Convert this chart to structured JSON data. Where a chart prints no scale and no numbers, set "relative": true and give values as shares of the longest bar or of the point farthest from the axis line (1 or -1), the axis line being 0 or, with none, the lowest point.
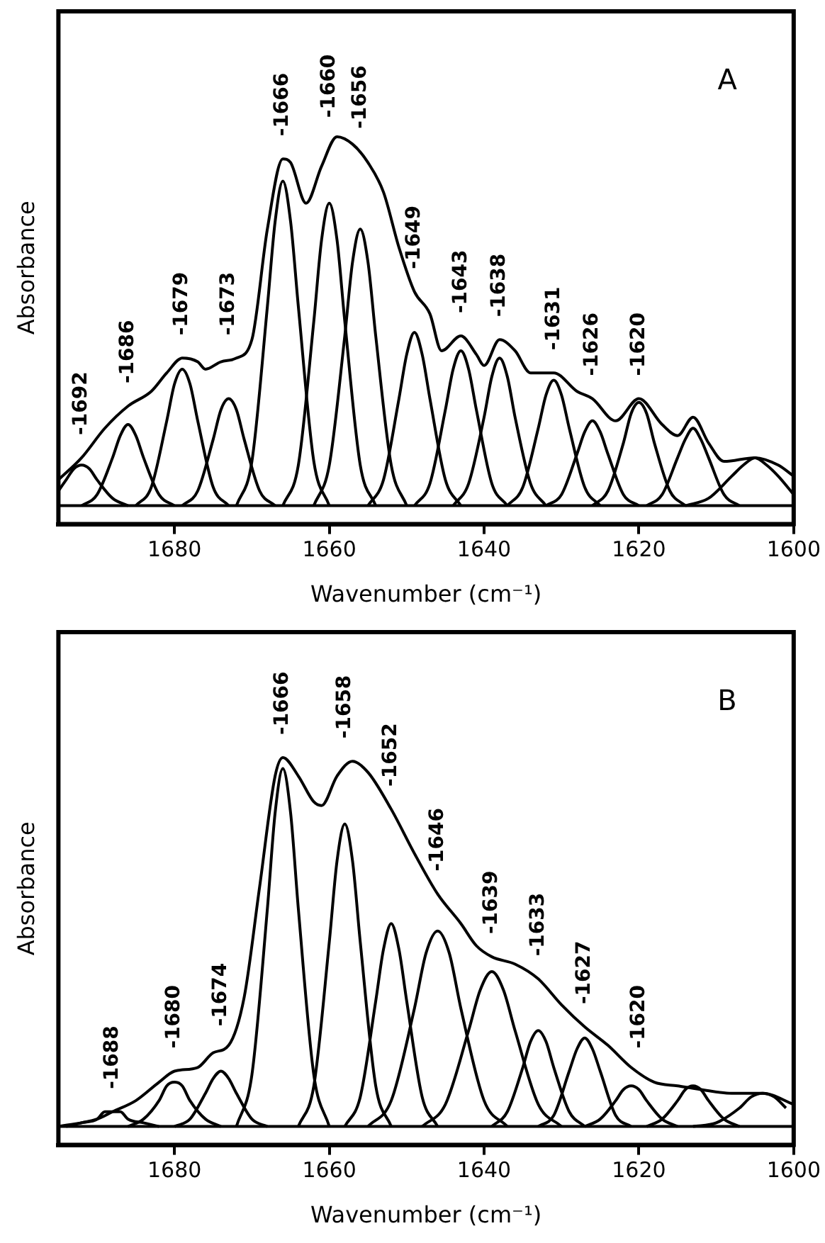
{
  "chart_data": [
    {
      "type": "line",
      "relative": true,
      "xlabel": "Wavenumber (cm⁻¹)",
      "ylabel": "Absorbance",
      "xlim": [
        1695,
        1600
      ],
      "xticks": [
        1680,
        1660,
        1640,
        1620,
        1600
      ],
      "marker": "none",
      "line_style": "solid",
      "series": [
        {
          "color": "#000000",
          "x": [
            1695,
            1692,
            1689,
            1686,
            1683,
            1681,
            1679,
            1677,
            1676,
            1674,
            1672,
            1670,
            1668,
            1666,
            1665,
            1663,
            1661,
            1659,
            1657,
            1655,
            1653,
            1651,
            1649,
            1647,
            1645.5,
            1643,
            1641,
            1640,
            1638,
            1636,
            1634,
            1631,
            1628,
            1626,
            1623,
            1620,
            1617,
            1615,
            1613,
            1611,
            1609,
            1605,
            1602,
            1600
          ],
          "values": [
            0.07,
            0.13,
            0.21,
            0.27,
            0.31,
            0.36,
            0.4,
            0.39,
            0.37,
            0.39,
            0.4,
            0.45,
            0.75,
            0.94,
            0.93,
            0.82,
            0.92,
            1.0,
            0.98,
            0.93,
            0.85,
            0.7,
            0.58,
            0.52,
            0.42,
            0.46,
            0.41,
            0.38,
            0.45,
            0.42,
            0.36,
            0.36,
            0.31,
            0.29,
            0.23,
            0.29,
            0.22,
            0.19,
            0.24,
            0.17,
            0.12,
            0.13,
            0.11,
            0.08
          ]
        },
        {
          "color": "#000000",
          "x": [
            1695,
            1694,
            1693,
            1692,
            1691,
            1690,
            1688,
            1686
          ],
          "values": [
            0.04,
            0.07,
            0.1,
            0.11,
            0.1,
            0.07,
            0.02,
            0
          ]
        },
        {
          "color": "#000000",
          "x": [
            1692,
            1690,
            1688,
            1687,
            1686,
            1685,
            1684,
            1682,
            1680
          ],
          "values": [
            0,
            0.03,
            0.13,
            0.19,
            0.22,
            0.19,
            0.13,
            0.03,
            0
          ]
        },
        {
          "color": "#000000",
          "x": [
            1685,
            1683,
            1681,
            1680,
            1679,
            1678,
            1677,
            1675,
            1673
          ],
          "values": [
            0,
            0.05,
            0.23,
            0.33,
            0.37,
            0.33,
            0.23,
            0.05,
            0
          ]
        },
        {
          "color": "#000000",
          "x": [
            1679,
            1677,
            1675,
            1674,
            1673,
            1672,
            1671,
            1669,
            1667
          ],
          "values": [
            0,
            0.04,
            0.18,
            0.26,
            0.29,
            0.26,
            0.18,
            0.04,
            0
          ]
        },
        {
          "color": "#000000",
          "x": [
            1672,
            1670,
            1668,
            1667,
            1666,
            1665,
            1664,
            1662,
            1660
          ],
          "values": [
            0,
            0.12,
            0.54,
            0.77,
            0.88,
            0.77,
            0.54,
            0.12,
            0
          ]
        },
        {
          "color": "#000000",
          "x": [
            1666,
            1664,
            1662,
            1661,
            1660,
            1659,
            1658,
            1656,
            1654
          ],
          "values": [
            0,
            0.11,
            0.5,
            0.72,
            0.82,
            0.72,
            0.5,
            0.11,
            0
          ]
        },
        {
          "color": "#000000",
          "x": [
            1662,
            1660,
            1658,
            1657,
            1656,
            1655,
            1654,
            1652,
            1650
          ],
          "values": [
            0,
            0.11,
            0.46,
            0.66,
            0.75,
            0.66,
            0.46,
            0.11,
            0
          ]
        },
        {
          "color": "#000000",
          "x": [
            1655,
            1653,
            1651,
            1650,
            1649,
            1648,
            1647,
            1645,
            1643
          ],
          "values": [
            0,
            0.07,
            0.29,
            0.41,
            0.47,
            0.41,
            0.29,
            0.07,
            0
          ]
        },
        {
          "color": "#000000",
          "x": [
            1649,
            1647,
            1645,
            1644,
            1643,
            1642,
            1641,
            1639,
            1637
          ],
          "values": [
            0,
            0.06,
            0.26,
            0.37,
            0.42,
            0.37,
            0.26,
            0.06,
            0
          ]
        },
        {
          "color": "#000000",
          "x": [
            1644,
            1642,
            1640,
            1639,
            1638,
            1637,
            1636,
            1634,
            1632
          ],
          "values": [
            0,
            0.06,
            0.24,
            0.35,
            0.4,
            0.35,
            0.24,
            0.06,
            0
          ]
        },
        {
          "color": "#000000",
          "x": [
            1637,
            1635,
            1633,
            1632,
            1631,
            1630,
            1629,
            1627,
            1625
          ],
          "values": [
            0,
            0.05,
            0.21,
            0.3,
            0.34,
            0.3,
            0.21,
            0.05,
            0
          ]
        },
        {
          "color": "#000000",
          "x": [
            1632,
            1630,
            1628,
            1627,
            1626,
            1625,
            1624,
            1622,
            1620
          ],
          "values": [
            0,
            0.03,
            0.14,
            0.2,
            0.23,
            0.2,
            0.14,
            0.03,
            0
          ]
        },
        {
          "color": "#000000",
          "x": [
            1626,
            1624,
            1622,
            1621,
            1620,
            1619,
            1618,
            1616,
            1614
          ],
          "values": [
            0,
            0.04,
            0.17,
            0.25,
            0.28,
            0.25,
            0.17,
            0.04,
            0
          ]
        },
        {
          "color": "#000000",
          "x": [
            1619,
            1617,
            1615,
            1614,
            1613,
            1612,
            1611,
            1609,
            1607
          ],
          "values": [
            0,
            0.03,
            0.13,
            0.18,
            0.21,
            0.18,
            0.13,
            0.03,
            0
          ]
        },
        {
          "color": "#000000",
          "x": [
            1614,
            1611,
            1608,
            1606.5,
            1605,
            1603.5,
            1602,
            1600
          ],
          "values": [
            0,
            0.02,
            0.08,
            0.11,
            0.13,
            0.11,
            0.08,
            0.03
          ]
        }
      ],
      "annotations": [
        "A",
        {
          "text": "-1692",
          "x": 1692,
          "y": 0.13
        },
        {
          "text": "-1686",
          "x": 1686,
          "y": 0.27
        },
        {
          "text": "-1679",
          "x": 1679,
          "y": 0.4
        },
        {
          "text": "-1673",
          "x": 1673,
          "y": 0.4
        },
        {
          "text": "-1666",
          "x": 1666,
          "y": 0.94
        },
        {
          "text": "-1660",
          "x": 1660,
          "y": 0.99
        },
        {
          "text": "-1656",
          "x": 1656,
          "y": 0.96
        },
        {
          "text": "-1649",
          "x": 1649,
          "y": 0.58
        },
        {
          "text": "-1643",
          "x": 1643,
          "y": 0.46
        },
        {
          "text": "-1638",
          "x": 1638,
          "y": 0.45
        },
        {
          "text": "-1631",
          "x": 1631,
          "y": 0.36
        },
        {
          "text": "-1626",
          "x": 1626,
          "y": 0.29
        },
        {
          "text": "-1620",
          "x": 1620,
          "y": 0.29
        }
      ]
    },
    {
      "type": "line",
      "relative": true,
      "xlabel": "Wavenumber (cm⁻¹)",
      "ylabel": "Absorbance",
      "xlim": [
        1695,
        1600
      ],
      "xticks": [
        1680,
        1660,
        1640,
        1620,
        1600
      ],
      "marker": "none",
      "line_style": "solid",
      "series": [
        {
          "color": "#000000",
          "x": [
            1695,
            1690,
            1688,
            1685,
            1682,
            1680,
            1677,
            1675,
            1673,
            1671,
            1669,
            1667,
            1666,
            1664,
            1662,
            1661,
            1659,
            1657,
            1655,
            1652,
            1649,
            1646,
            1643,
            1641,
            1639,
            1636,
            1633,
            1630,
            1627,
            1624,
            1621,
            1618,
            1615,
            1612,
            1608,
            1604,
            1600
          ],
          "values": [
            0,
            0.02,
            0.04,
            0.07,
            0.12,
            0.15,
            0.16,
            0.2,
            0.22,
            0.35,
            0.65,
            0.95,
            1.0,
            0.95,
            0.88,
            0.87,
            0.95,
            0.99,
            0.96,
            0.86,
            0.74,
            0.63,
            0.55,
            0.49,
            0.46,
            0.44,
            0.4,
            0.33,
            0.27,
            0.22,
            0.16,
            0.12,
            0.11,
            0.1,
            0.09,
            0.09,
            0.06
          ]
        },
        {
          "color": "#000000",
          "x": [
            1694,
            1692,
            1690,
            1689,
            1688,
            1687,
            1686,
            1684,
            1682
          ],
          "values": [
            0,
            0.01,
            0.02,
            0.04,
            0.04,
            0.04,
            0.02,
            0.01,
            0
          ]
        },
        {
          "color": "#000000",
          "x": [
            1686,
            1684,
            1682,
            1681,
            1680,
            1679,
            1678,
            1676,
            1674
          ],
          "values": [
            0,
            0.02,
            0.07,
            0.11,
            0.12,
            0.11,
            0.07,
            0.02,
            0
          ]
        },
        {
          "color": "#000000",
          "x": [
            1680,
            1678,
            1676,
            1675,
            1674,
            1673,
            1672,
            1670,
            1668
          ],
          "values": [
            0,
            0.02,
            0.09,
            0.13,
            0.15,
            0.13,
            0.09,
            0.02,
            0
          ]
        },
        {
          "color": "#000000",
          "x": [
            1672,
            1670,
            1668,
            1667,
            1666,
            1665,
            1664,
            1662,
            1660
          ],
          "values": [
            0,
            0.14,
            0.59,
            0.85,
            0.97,
            0.85,
            0.59,
            0.14,
            0
          ]
        },
        {
          "color": "#000000",
          "x": [
            1664,
            1662,
            1660,
            1659,
            1658,
            1657,
            1656,
            1654,
            1652
          ],
          "values": [
            0,
            0.11,
            0.5,
            0.72,
            0.82,
            0.72,
            0.5,
            0.11,
            0
          ]
        },
        {
          "color": "#000000",
          "x": [
            1658,
            1656,
            1654,
            1653,
            1652,
            1651,
            1650,
            1648,
            1646
          ],
          "values": [
            0,
            0.08,
            0.34,
            0.48,
            0.55,
            0.48,
            0.34,
            0.08,
            0
          ]
        },
        {
          "color": "#000000",
          "x": [
            1655,
            1652,
            1649,
            1647.5,
            1646,
            1644.5,
            1643,
            1640,
            1637
          ],
          "values": [
            0,
            0.07,
            0.32,
            0.47,
            0.53,
            0.47,
            0.32,
            0.07,
            0
          ]
        },
        {
          "color": "#000000",
          "x": [
            1648,
            1645,
            1642,
            1640.5,
            1639,
            1637.5,
            1636,
            1633,
            1630
          ],
          "values": [
            0,
            0.06,
            0.26,
            0.37,
            0.42,
            0.37,
            0.26,
            0.06,
            0
          ]
        },
        {
          "color": "#000000",
          "x": [
            1639,
            1637,
            1635,
            1634,
            1633,
            1632,
            1631,
            1629,
            1627
          ],
          "values": [
            0,
            0.04,
            0.16,
            0.23,
            0.26,
            0.23,
            0.16,
            0.04,
            0
          ]
        },
        {
          "color": "#000000",
          "x": [
            1633,
            1631,
            1629,
            1628,
            1627,
            1626,
            1625,
            1623,
            1621
          ],
          "values": [
            0,
            0.03,
            0.15,
            0.21,
            0.24,
            0.21,
            0.15,
            0.03,
            0
          ]
        },
        {
          "color": "#000000",
          "x": [
            1627,
            1625,
            1623,
            1622,
            1621,
            1620,
            1619,
            1617,
            1615
          ],
          "values": [
            0,
            0.02,
            0.07,
            0.1,
            0.11,
            0.1,
            0.07,
            0.02,
            0
          ]
        },
        {
          "color": "#000000",
          "x": [
            1619,
            1617,
            1615,
            1614,
            1613,
            1612,
            1611,
            1609,
            1607
          ],
          "values": [
            0,
            0.02,
            0.07,
            0.1,
            0.11,
            0.1,
            0.07,
            0.02,
            0
          ]
        },
        {
          "color": "#000000",
          "x": [
            1613,
            1610,
            1607,
            1605.5,
            1604,
            1602.5,
            1601
          ],
          "values": [
            0,
            0.01,
            0.05,
            0.08,
            0.09,
            0.08,
            0.05
          ]
        }
      ],
      "annotations": [
        "B",
        {
          "text": "-1688",
          "x": 1688,
          "y": 0.04
        },
        {
          "text": "-1680",
          "x": 1680,
          "y": 0.15
        },
        {
          "text": "-1674",
          "x": 1674,
          "y": 0.21
        },
        {
          "text": "-1666",
          "x": 1666,
          "y": 1.0
        },
        {
          "text": "-1658",
          "x": 1658,
          "y": 0.99
        },
        {
          "text": "-1652",
          "x": 1652,
          "y": 0.86
        },
        {
          "text": "-1646",
          "x": 1646,
          "y": 0.63
        },
        {
          "text": "-1639",
          "x": 1639,
          "y": 0.46
        },
        {
          "text": "-1633",
          "x": 1633,
          "y": 0.4
        },
        {
          "text": "-1627",
          "x": 1627,
          "y": 0.27
        },
        {
          "text": "-1620",
          "x": 1620,
          "y": 0.15
        }
      ]
    }
  ]
}
